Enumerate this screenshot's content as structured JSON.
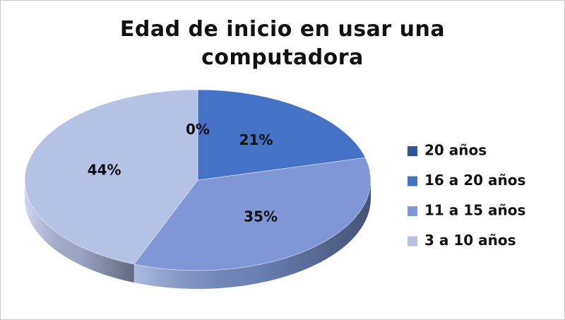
{
  "chart_data": {
    "type": "pie",
    "title": "Edad de inicio en usar una computadora",
    "categories": [
      "20 años",
      "16 a 20 años",
      "11 a 15 años",
      "3 a 10 años"
    ],
    "values": [
      0,
      21,
      35,
      44
    ],
    "value_labels": [
      "0%",
      "21%",
      "35%",
      "44%"
    ],
    "colors": [
      "#2f5597",
      "#4472c4",
      "#7f97d6",
      "#b6c1e6"
    ],
    "legend": "right"
  }
}
